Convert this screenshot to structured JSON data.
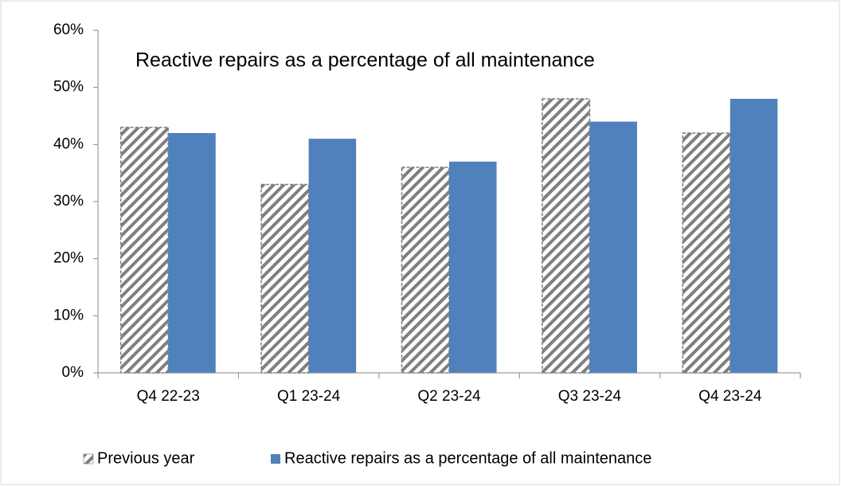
{
  "chart_data": {
    "type": "bar",
    "title": "Reactive repairs as a percentage of all maintenance",
    "categories": [
      "Q4 22-23",
      "Q1 23-24",
      "Q2 23-24",
      "Q3 23-24",
      "Q4 23-24"
    ],
    "series": [
      {
        "name": "Previous year",
        "color": "#7f7f7f",
        "fill": "hatch",
        "values": [
          43,
          33,
          36,
          48,
          42
        ]
      },
      {
        "name": "Reactive repairs as a percentage of all maintenance",
        "color": "#4f81bd",
        "fill": "solid",
        "values": [
          42,
          41,
          37,
          44,
          48
        ]
      }
    ],
    "ylim": [
      0,
      60
    ],
    "yticks": [
      {
        "value": 0,
        "label": "0%"
      },
      {
        "value": 10,
        "label": "10%"
      },
      {
        "value": 20,
        "label": "20%"
      },
      {
        "value": 30,
        "label": "30%"
      },
      {
        "value": 40,
        "label": "40%"
      },
      {
        "value": 50,
        "label": "50%"
      },
      {
        "value": 60,
        "label": "60%"
      }
    ],
    "grid": false,
    "legend": "bottom"
  }
}
